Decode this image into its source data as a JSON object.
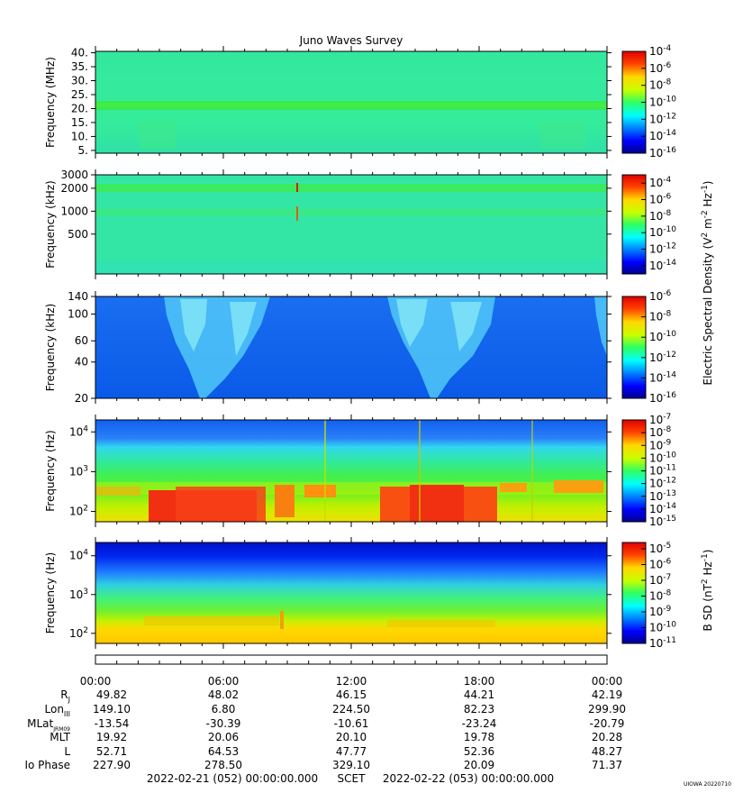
{
  "chart_data": {
    "type": "heatmap",
    "title": "Juno Waves Survey",
    "panels": [
      {
        "ylabel": "Frequency (MHz)",
        "yscale": "linear",
        "ylim": [
          4,
          40.5
        ],
        "yticks": [
          5,
          10,
          15,
          20,
          25,
          30,
          35,
          40
        ],
        "yticklabels": [
          "5.",
          "10.",
          "15.",
          "20.",
          "25.",
          "30.",
          "35.",
          "40."
        ],
        "colorbar": {
          "scale": "log",
          "range_exp": [
            -16,
            -4
          ],
          "tick_exps": [
            -4,
            -6,
            -8,
            -10,
            -12,
            -14,
            -16
          ],
          "ticklabels": [
            {
              "base": "10",
              "exp": "-4"
            },
            {
              "base": "10",
              "exp": "-6"
            },
            {
              "base": "10",
              "exp": "-8"
            },
            {
              "base": "10",
              "exp": "-10"
            },
            {
              "base": "10",
              "exp": "-12"
            },
            {
              "base": "10",
              "exp": "-14"
            },
            {
              "base": "10",
              "exp": "-16"
            }
          ]
        }
      },
      {
        "ylabel": "Frequency (kHz)",
        "yscale": "log",
        "ylim": [
          150,
          3000
        ],
        "yticks": [
          500,
          1000,
          2000,
          3000
        ],
        "yticklabels": [
          "500",
          "1000",
          "2000",
          "3000"
        ],
        "colorbar": {
          "scale": "log",
          "range_exp": [
            -15,
            -3
          ],
          "tick_exps": [
            -4,
            -6,
            -8,
            -10,
            -12,
            -14
          ],
          "ticklabels": [
            {
              "base": "10",
              "exp": "-4"
            },
            {
              "base": "10",
              "exp": "-6"
            },
            {
              "base": "10",
              "exp": "-8"
            },
            {
              "base": "10",
              "exp": "-10"
            },
            {
              "base": "10",
              "exp": "-12"
            },
            {
              "base": "10",
              "exp": "-14"
            }
          ]
        }
      },
      {
        "ylabel": "Frequency (kHz)",
        "yscale": "log",
        "ylim": [
          20,
          140
        ],
        "yticks": [
          20,
          40,
          60,
          100,
          140
        ],
        "yticklabels": [
          "20",
          "40",
          "60",
          "100",
          "140"
        ],
        "colorbar": {
          "scale": "log",
          "range_exp": [
            -16,
            -6
          ],
          "tick_exps": [
            -6,
            -8,
            -10,
            -12,
            -14,
            -16
          ],
          "ticklabels": [
            {
              "base": "10",
              "exp": "-6"
            },
            {
              "base": "10",
              "exp": "-8"
            },
            {
              "base": "10",
              "exp": "-10"
            },
            {
              "base": "10",
              "exp": "-12"
            },
            {
              "base": "10",
              "exp": "-14"
            },
            {
              "base": "10",
              "exp": "-16"
            }
          ]
        }
      },
      {
        "ylabel": "Frequency (Hz)",
        "yscale": "log",
        "ylim": [
          55,
          20000
        ],
        "yticks": [
          100,
          1000,
          10000
        ],
        "yticklabels": [
          {
            "base": "10",
            "exp": "2"
          },
          {
            "base": "10",
            "exp": "3"
          },
          {
            "base": "10",
            "exp": "4"
          }
        ],
        "colorbar": {
          "scale": "log",
          "range_exp": [
            -15,
            -7
          ],
          "tick_exps": [
            -7,
            -8,
            -9,
            -10,
            -11,
            -12,
            -13,
            -14,
            -15
          ],
          "ticklabels": [
            {
              "base": "10",
              "exp": "-7"
            },
            {
              "base": "10",
              "exp": "-8"
            },
            {
              "base": "10",
              "exp": "-9"
            },
            {
              "base": "10",
              "exp": "-10"
            },
            {
              "base": "10",
              "exp": "-11"
            },
            {
              "base": "10",
              "exp": "-12"
            },
            {
              "base": "10",
              "exp": "-13"
            },
            {
              "base": "10",
              "exp": "-14"
            },
            {
              "base": "10",
              "exp": "-15"
            }
          ]
        }
      },
      {
        "ylabel": "Frequency (Hz)",
        "yscale": "log",
        "ylim": [
          55,
          22000
        ],
        "yticks": [
          100,
          1000,
          10000
        ],
        "yticklabels": [
          {
            "base": "10",
            "exp": "2"
          },
          {
            "base": "10",
            "exp": "3"
          },
          {
            "base": "10",
            "exp": "4"
          }
        ],
        "colorbar": {
          "scale": "log",
          "range_exp": [
            -11,
            -4.6
          ],
          "tick_exps": [
            -5,
            -6,
            -7,
            -8,
            -9,
            -10,
            -11
          ],
          "ticklabels": [
            {
              "base": "10",
              "exp": "-5"
            },
            {
              "base": "10",
              "exp": "-6"
            },
            {
              "base": "10",
              "exp": "-7"
            },
            {
              "base": "10",
              "exp": "-8"
            },
            {
              "base": "10",
              "exp": "-9"
            },
            {
              "base": "10",
              "exp": "-10"
            },
            {
              "base": "10",
              "exp": "-11"
            }
          ]
        }
      }
    ],
    "colorbar_labels": [
      {
        "text": "Electric Spectral Density (V",
        "sup1": "2",
        "mid": " m",
        "sup2": "-2",
        "mid2": " Hz",
        "sup3": "-1",
        "end": ")"
      },
      {
        "text": "B SD (nT",
        "sup1": "2",
        "mid": " Hz",
        "sup2": "-1",
        "end": ")"
      }
    ],
    "time_ticks": [
      "00:00",
      "06:00",
      "12:00",
      "18:00",
      "00:00"
    ],
    "ephemeris": [
      {
        "label": "R",
        "sub": "J",
        "values": [
          "49.82",
          "48.02",
          "46.15",
          "44.21",
          "42.19"
        ]
      },
      {
        "label": "Lon",
        "sub": "III",
        "values": [
          "149.10",
          "6.80",
          "224.50",
          "82.23",
          "299.90"
        ]
      },
      {
        "label": "MLat",
        "sub": "JRM09",
        "values": [
          "-13.54",
          "-30.39",
          "-10.61",
          "-23.24",
          "-20.79"
        ]
      },
      {
        "label": "MLT",
        "sub": "",
        "values": [
          "19.92",
          "20.06",
          "20.10",
          "19.78",
          "20.28"
        ]
      },
      {
        "label": "L",
        "sub": "",
        "values": [
          "52.71",
          "64.53",
          "47.77",
          "52.36",
          "48.27"
        ]
      },
      {
        "label": "Io Phase",
        "sub": "",
        "values": [
          "227.90",
          "278.50",
          "329.10",
          "20.09",
          "71.37"
        ]
      }
    ],
    "footer": {
      "start": "2022-02-21 (052) 00:00:00.000",
      "scet": "SCET",
      "end": "2022-02-22 (053) 00:00:00.000"
    },
    "credit": "UIOWA 20220710"
  }
}
